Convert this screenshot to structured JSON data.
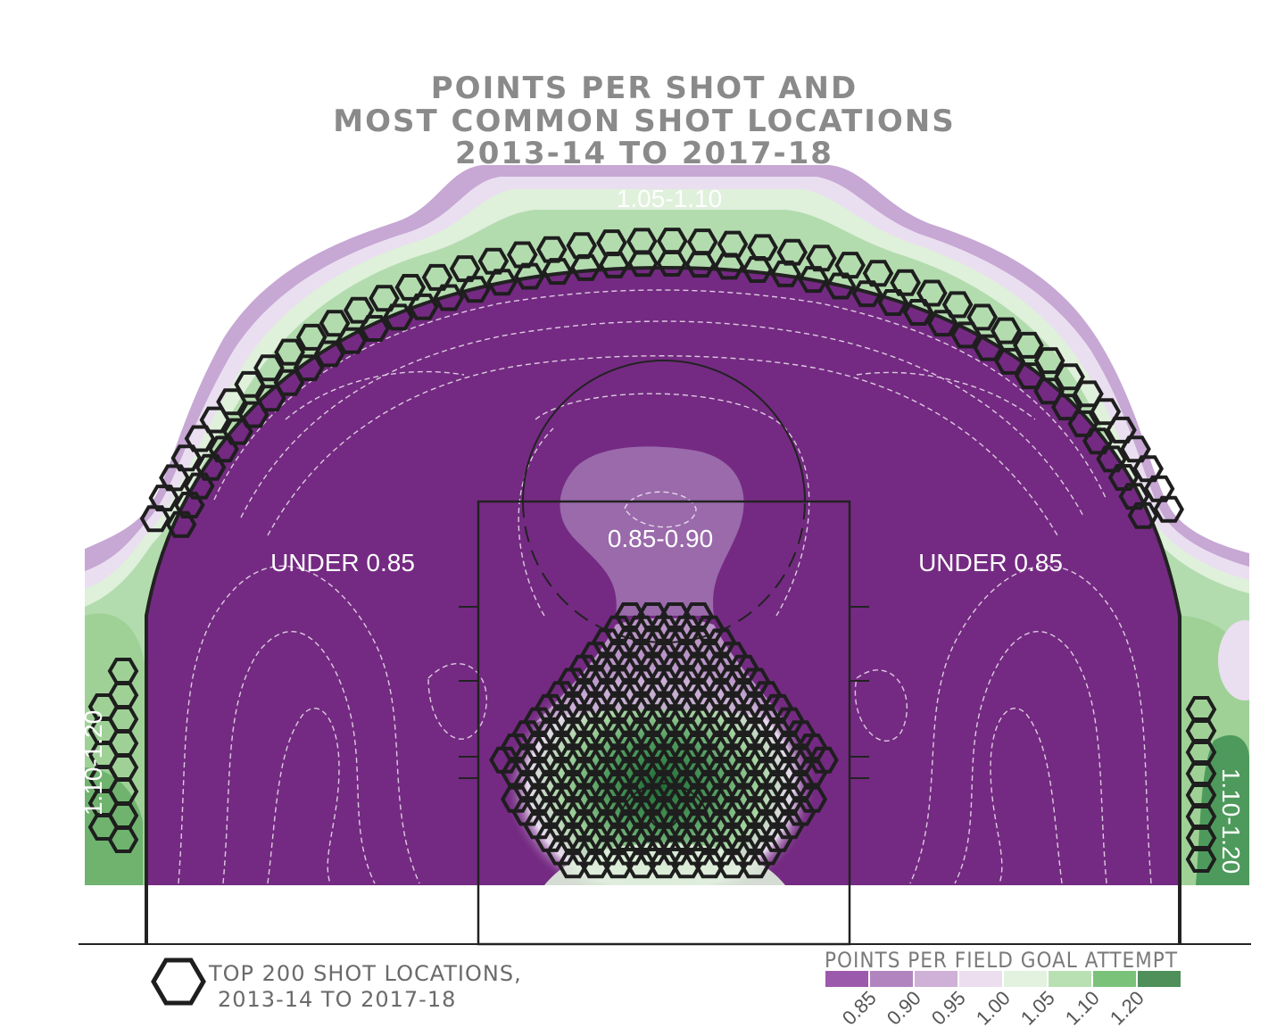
{
  "chart_data": {
    "type": "heatmap",
    "title": [
      "POINTS PER SHOT AND",
      "MOST COMMON SHOT LOCATIONS",
      "2013-14 TO 2017-18"
    ],
    "zone_labels": [
      {
        "id": "top-three",
        "text": "1.05-1.10"
      },
      {
        "id": "left-mid",
        "text": "UNDER 0.85"
      },
      {
        "id": "lane-top",
        "text": "0.85-0.90"
      },
      {
        "id": "right-mid",
        "text": "UNDER 0.85"
      },
      {
        "id": "left-corner",
        "text": "1.10-1.20"
      },
      {
        "id": "right-corner",
        "text": "1.10-1.20"
      }
    ],
    "legend": {
      "title": "POINTS PER FIELD GOAL ATTEMPT",
      "bins": [
        {
          "label": "0.85",
          "color": "#9c5aad"
        },
        {
          "label": "0.90",
          "color": "#b184c0"
        },
        {
          "label": "0.95",
          "color": "#cfb0d7"
        },
        {
          "label": "1.00",
          "color": "#ecdeef"
        },
        {
          "label": "1.05",
          "color": "#e2f2df"
        },
        {
          "label": "1.10",
          "color": "#b9e0b3"
        },
        {
          "label": "1.20",
          "color": "#7ac27a"
        },
        {
          "label": "",
          "color": "#4e8f5a"
        }
      ]
    },
    "hex_legend": [
      "TOP 200 SHOT LOCATIONS,",
      "2013-14 TO 2017-18"
    ],
    "colors": {
      "under_085": "#742a82",
      "band_085_090": "#9a6aab",
      "light_purple": "#c7a7d4",
      "pale_purple": "#eadff0",
      "pale_green": "#dff0db",
      "light_green": "#b3dcae",
      "mid_green": "#7fbf80",
      "dark_green": "#2f7a45"
    }
  }
}
